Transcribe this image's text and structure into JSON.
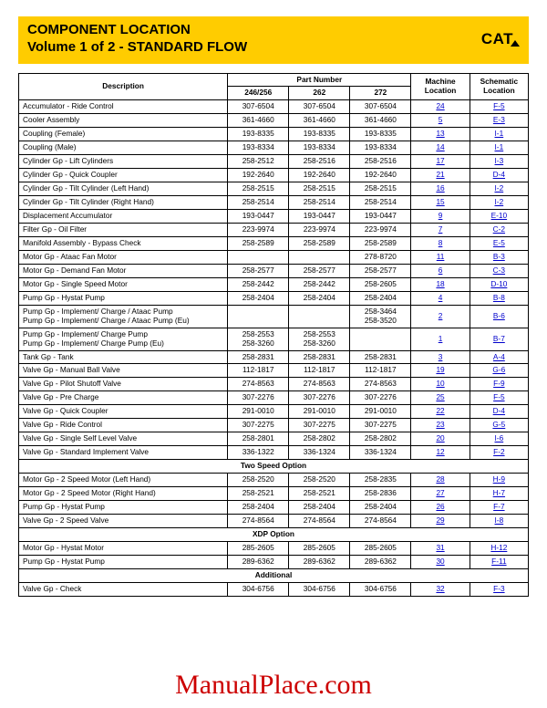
{
  "title": {
    "line1": "COMPONENT LOCATION",
    "line2": "Volume 1 of 2 - STANDARD FLOW",
    "logo": "CAT"
  },
  "headers": {
    "description": "Description",
    "partNumber": "Part Number",
    "machineLocation": "Machine Location",
    "schematicLocation": "Schematic Location",
    "pn1": "246/256",
    "pn2": "262",
    "pn3": "272"
  },
  "watermark": "ManualPlace.com",
  "sections": [
    {
      "title": null,
      "rows": [
        {
          "d": "Accumulator - Ride Control",
          "p": [
            "307-6504",
            "307-6504",
            "307-6504"
          ],
          "m": "24",
          "s": "F-5"
        },
        {
          "d": "Cooler Assembly",
          "p": [
            "361-4660",
            "361-4660",
            "361-4660"
          ],
          "m": "5",
          "s": "E-3"
        },
        {
          "d": "Coupling (Female)",
          "p": [
            "193-8335",
            "193-8335",
            "193-8335"
          ],
          "m": "13",
          "s": "I-1"
        },
        {
          "d": "Coupling (Male)",
          "p": [
            "193-8334",
            "193-8334",
            "193-8334"
          ],
          "m": "14",
          "s": "I-1"
        },
        {
          "d": "Cylinder Gp - Lift Cylinders",
          "p": [
            "258-2512",
            "258-2516",
            "258-2516"
          ],
          "m": "17",
          "s": "I-3"
        },
        {
          "d": "Cylinder Gp - Quick Coupler",
          "p": [
            "192-2640",
            "192-2640",
            "192-2640"
          ],
          "m": "21",
          "s": "D-4"
        },
        {
          "d": "Cylinder Gp - Tilt Cylinder (Left Hand)",
          "p": [
            "258-2515",
            "258-2515",
            "258-2515"
          ],
          "m": "16",
          "s": "I-2"
        },
        {
          "d": "Cylinder Gp - Tilt Cylinder (Right Hand)",
          "p": [
            "258-2514",
            "258-2514",
            "258-2514"
          ],
          "m": "15",
          "s": "I-2"
        },
        {
          "d": "Displacement Accumulator",
          "p": [
            "193-0447",
            "193-0447",
            "193-0447"
          ],
          "m": "9",
          "s": "E-10"
        },
        {
          "d": "Filter Gp - Oil Filter",
          "p": [
            "223-9974",
            "223-9974",
            "223-9974"
          ],
          "m": "7",
          "s": "C-2"
        },
        {
          "d": "Manifold Assembly - Bypass Check",
          "p": [
            "258-2589",
            "258-2589",
            "258-2589"
          ],
          "m": "8",
          "s": "E-5"
        },
        {
          "d": "Motor Gp - Ataac Fan Motor",
          "p": [
            "",
            "",
            "278-8720"
          ],
          "m": "11",
          "s": "B-3"
        },
        {
          "d": "Motor Gp - Demand Fan Motor",
          "p": [
            "258-2577",
            "258-2577",
            "258-2577"
          ],
          "m": "6",
          "s": "C-3"
        },
        {
          "d": "Motor Gp - Single Speed Motor",
          "p": [
            "258-2442",
            "258-2442",
            "258-2605"
          ],
          "m": "18",
          "s": "D-10"
        },
        {
          "d": "Pump Gp - Hystat Pump",
          "p": [
            "258-2404",
            "258-2404",
            "258-2404"
          ],
          "m": "4",
          "s": "B-8"
        },
        {
          "d": "Pump Gp - Implement/ Charge / Ataac Pump\nPump Gp - Implement/ Charge / Ataac Pump (Eu)",
          "p": [
            "",
            "",
            "258-3464\n258-3520"
          ],
          "m": "2",
          "s": "B-6"
        },
        {
          "d": "Pump Gp - Implement/ Charge Pump\nPump Gp - Implement/ Charge Pump (Eu)",
          "p": [
            "258-2553\n258-3260",
            "258-2553\n258-3260",
            ""
          ],
          "m": "1",
          "s": "B-7"
        },
        {
          "d": "Tank Gp - Tank",
          "p": [
            "258-2831",
            "258-2831",
            "258-2831"
          ],
          "m": "3",
          "s": "A-4"
        },
        {
          "d": "Valve Gp - Manual Ball Valve",
          "p": [
            "112-1817",
            "112-1817",
            "112-1817"
          ],
          "m": "19",
          "s": "G-6"
        },
        {
          "d": "Valve Gp - Pilot Shutoff Valve",
          "p": [
            "274-8563",
            "274-8563",
            "274-8563"
          ],
          "m": "10",
          "s": "F-9"
        },
        {
          "d": "Valve Gp - Pre Charge",
          "p": [
            "307-2276",
            "307-2276",
            "307-2276"
          ],
          "m": "25",
          "s": "F-5"
        },
        {
          "d": "Valve Gp - Quick Coupler",
          "p": [
            "291-0010",
            "291-0010",
            "291-0010"
          ],
          "m": "22",
          "s": "D-4"
        },
        {
          "d": "Valve Gp - Ride Control",
          "p": [
            "307-2275",
            "307-2275",
            "307-2275"
          ],
          "m": "23",
          "s": "G-5"
        },
        {
          "d": "Valve Gp - Single Self Level Valve",
          "p": [
            "258-2801",
            "258-2802",
            "258-2802"
          ],
          "m": "20",
          "s": "I-6"
        },
        {
          "d": "Valve Gp - Standard Implement Valve",
          "p": [
            "336-1322",
            "336-1324",
            "336-1324"
          ],
          "m": "12",
          "s": "F-2"
        }
      ]
    },
    {
      "title": "Two Speed Option",
      "rows": [
        {
          "d": "Motor Gp - 2 Speed Motor (Left Hand)",
          "p": [
            "258-2520",
            "258-2520",
            "258-2835"
          ],
          "m": "28",
          "s": "H-9"
        },
        {
          "d": "Motor Gp - 2 Speed Motor (Right Hand)",
          "p": [
            "258-2521",
            "258-2521",
            "258-2836"
          ],
          "m": "27",
          "s": "H-7"
        },
        {
          "d": "Pump Gp - Hystat Pump",
          "p": [
            "258-2404",
            "258-2404",
            "258-2404"
          ],
          "m": "26",
          "s": "F-7"
        },
        {
          "d": "Valve Gp - 2 Speed Valve",
          "p": [
            "274-8564",
            "274-8564",
            "274-8564"
          ],
          "m": "29",
          "s": "I-8"
        }
      ]
    },
    {
      "title": "XDP Option",
      "rows": [
        {
          "d": "Motor Gp - Hystat Motor",
          "p": [
            "285-2605",
            "285-2605",
            "285-2605"
          ],
          "m": "31",
          "s": "H-12"
        },
        {
          "d": "Pump Gp - Hystat Pump",
          "p": [
            "289-6362",
            "289-6362",
            "289-6362"
          ],
          "m": "30",
          "s": "F-11"
        }
      ]
    },
    {
      "title": "Additional",
      "rows": [
        {
          "d": "Valve Gp -  Check",
          "p": [
            "304-6756",
            "304-6756",
            "304-6756"
          ],
          "m": "32",
          "s": "F-3"
        }
      ]
    }
  ]
}
